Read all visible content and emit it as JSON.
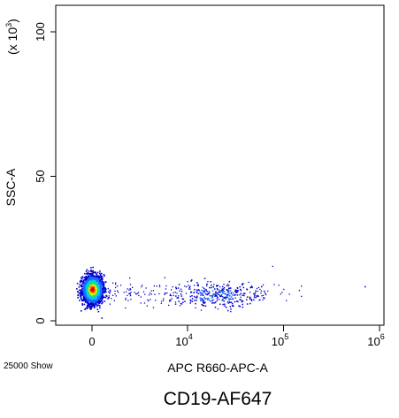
{
  "caption": "CD19-AF647",
  "event_count_label": "25000 Show",
  "chart_data": {
    "type": "scatter",
    "xlabel": "APC R660-APC-A",
    "ylabel": "SSC-A",
    "y_scale_label": "(x 10",
    "y_scale_exp": "3",
    "y_scale_close": ")",
    "y_ticks": [
      {
        "value": 0,
        "label": "0"
      },
      {
        "value": 50,
        "label": "50"
      },
      {
        "value": 100,
        "label": "100"
      }
    ],
    "x_ticks": [
      {
        "value": 0,
        "label": "0",
        "exp": ""
      },
      {
        "value": 10000,
        "label": "10",
        "exp": "4"
      },
      {
        "value": 100000,
        "label": "10",
        "exp": "5"
      },
      {
        "value": 1000000,
        "label": "10",
        "exp": "6"
      }
    ],
    "x_scale": "biexponential",
    "ylim": [
      0,
      100
    ],
    "density_colors": [
      "#0000cc",
      "#1a6cff",
      "#00c8ff",
      "#20e070",
      "#f0f000",
      "#ff7a00",
      "#e00000"
    ],
    "populations": [
      {
        "x_center": 0,
        "y_center": 11,
        "x_spread": 0.06,
        "y_spread": 2.2,
        "density": "high"
      },
      {
        "x_center": 20000,
        "y_center": 9,
        "x_spread": 0.22,
        "y_spread": 2.5,
        "density": "low"
      }
    ]
  }
}
